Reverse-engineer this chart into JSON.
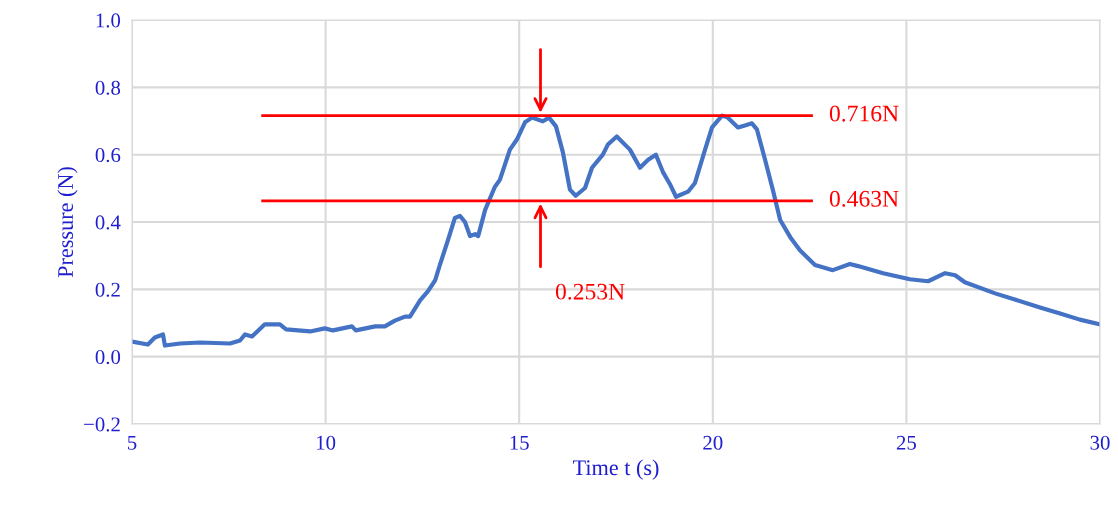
{
  "chart_data": {
    "type": "line",
    "xlabel": "Time t (s)",
    "ylabel": "Pressure (N)",
    "xlim": [
      5,
      30
    ],
    "xticks": [
      5,
      10,
      15,
      20,
      25,
      30
    ],
    "ylim": [
      -0.2,
      1.0
    ],
    "yticks": [
      {
        "value": -0.2,
        "label": "−0.2"
      },
      {
        "value": 0.0,
        "label": "0.0"
      },
      {
        "value": 0.2,
        "label": "0.2"
      },
      {
        "value": 0.4,
        "label": "0.4"
      },
      {
        "value": 0.6,
        "label": "0.6"
      },
      {
        "value": 0.8,
        "label": "0.8"
      },
      {
        "value": 1.0,
        "label": "1.0"
      }
    ],
    "grid": true,
    "marker": "none",
    "line_style": "solid",
    "series": [
      {
        "color": "#4472c4",
        "x": [
          5.0,
          5.41,
          5.59,
          5.8,
          5.85,
          6.24,
          6.76,
          7.53,
          7.79,
          7.92,
          8.1,
          8.43,
          8.82,
          8.98,
          9.6,
          9.98,
          10.19,
          10.68,
          10.78,
          11.28,
          11.53,
          11.79,
          12.05,
          12.18,
          12.44,
          12.64,
          12.83,
          12.95,
          13.16,
          13.34,
          13.47,
          13.6,
          13.73,
          13.86,
          13.94,
          14.12,
          14.37,
          14.5,
          14.76,
          14.94,
          15.15,
          15.33,
          15.61,
          15.77,
          15.95,
          16.13,
          16.31,
          16.46,
          16.7,
          16.88,
          17.16,
          17.29,
          17.52,
          17.86,
          18.12,
          18.33,
          18.53,
          18.71,
          18.89,
          19.05,
          19.36,
          19.54,
          19.8,
          19.98,
          20.24,
          20.39,
          20.65,
          20.83,
          21.01,
          21.14,
          21.35,
          21.55,
          21.74,
          22.0,
          22.25,
          22.64,
          23.1,
          23.54,
          23.75,
          24.4,
          25.09,
          25.56,
          26.0,
          26.26,
          26.51,
          27.29,
          27.8,
          28.45,
          28.97,
          29.48,
          30.0
        ],
        "values": [
          0.045,
          0.036,
          0.057,
          0.066,
          0.033,
          0.039,
          0.042,
          0.039,
          0.048,
          0.066,
          0.06,
          0.096,
          0.096,
          0.081,
          0.075,
          0.084,
          0.078,
          0.09,
          0.078,
          0.09,
          0.09,
          0.107,
          0.119,
          0.119,
          0.167,
          0.194,
          0.227,
          0.272,
          0.346,
          0.412,
          0.418,
          0.4,
          0.358,
          0.364,
          0.358,
          0.436,
          0.504,
          0.525,
          0.615,
          0.645,
          0.696,
          0.71,
          0.699,
          0.71,
          0.684,
          0.606,
          0.496,
          0.478,
          0.501,
          0.561,
          0.6,
          0.63,
          0.654,
          0.615,
          0.561,
          0.585,
          0.6,
          0.549,
          0.513,
          0.475,
          0.49,
          0.516,
          0.615,
          0.681,
          0.716,
          0.71,
          0.681,
          0.687,
          0.693,
          0.675,
          0.585,
          0.496,
          0.406,
          0.355,
          0.316,
          0.272,
          0.257,
          0.275,
          0.269,
          0.248,
          0.23,
          0.224,
          0.248,
          0.242,
          0.221,
          0.188,
          0.17,
          0.146,
          0.128,
          0.11,
          0.096
        ]
      }
    ],
    "ref_lines": [
      {
        "axis": "y",
        "value": 0.716,
        "label": "0.716N",
        "color": "#ff0000"
      },
      {
        "axis": "y",
        "value": 0.463,
        "label": "0.463N",
        "color": "#ff0000"
      }
    ],
    "annotations": [
      "0.253N"
    ]
  }
}
